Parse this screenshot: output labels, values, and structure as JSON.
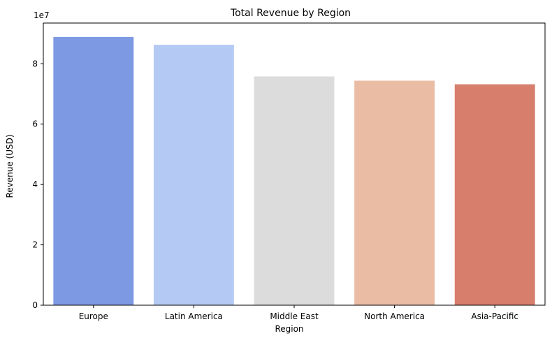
{
  "chart_data": {
    "type": "bar",
    "title": "Total Revenue by Region",
    "xlabel": "Region",
    "ylabel": "Revenue (USD)",
    "y_offset_label": "1e7",
    "categories": [
      "Europe",
      "Latin America",
      "Middle East",
      "North America",
      "Asia-Pacific"
    ],
    "values": [
      88900000,
      86300000,
      75800000,
      74400000,
      73200000
    ],
    "colors": [
      "#7e99e3",
      "#b4c9f4",
      "#dcdcdc",
      "#ebbca4",
      "#d77e6c"
    ],
    "ylim": [
      0,
      93500000
    ],
    "yticks": [
      0,
      20000000,
      40000000,
      60000000,
      80000000
    ],
    "ytick_labels": [
      "0",
      "2",
      "4",
      "6",
      "8"
    ],
    "grid": false,
    "legend": "none"
  }
}
